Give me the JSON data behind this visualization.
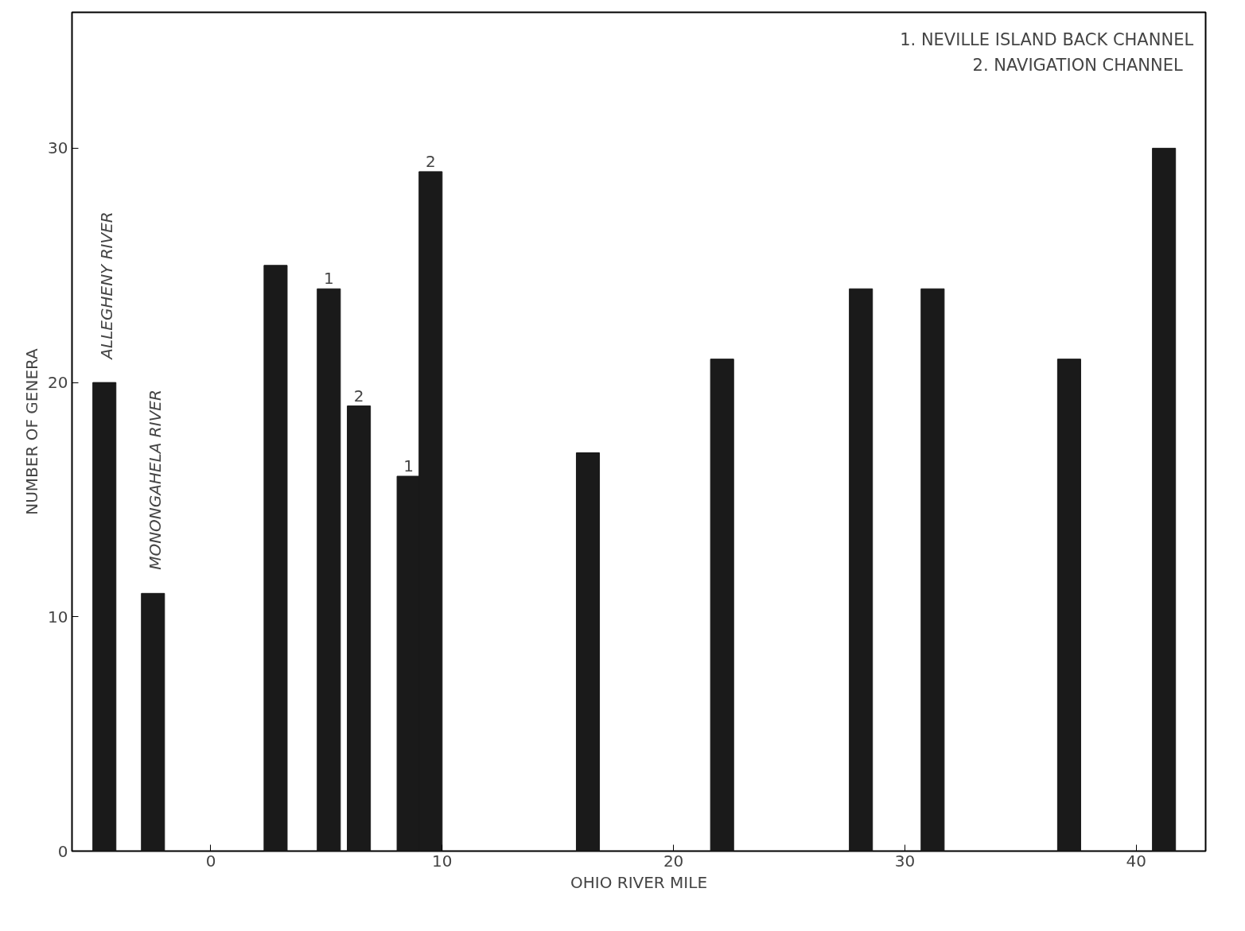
{
  "chart_data": {
    "type": "bar",
    "xlabel": "OHIO RIVER MILE",
    "ylabel": "NUMBER OF GENERA",
    "x": [
      -4.6,
      -2.5,
      2.8,
      5.1,
      6.4,
      8.55,
      9.5,
      16.3,
      22.1,
      28.1,
      31.2,
      37.1,
      41.2
    ],
    "values": [
      20,
      11,
      25,
      24,
      19,
      16,
      29,
      17,
      21,
      24,
      24,
      21,
      30
    ],
    "color": "#1a1a1a",
    "xlim": [
      -6,
      43
    ],
    "xticks": [
      0,
      10,
      20,
      30,
      40
    ],
    "ylim": [
      0,
      35.8
    ],
    "yticks": [
      0,
      10,
      20,
      30
    ],
    "grid": false,
    "annotations": [
      {
        "text": "ALLEGHENY RIVER",
        "x": -4.6,
        "y": 20
      },
      {
        "text": "MONONGAHELA RIVER",
        "x": -2.5,
        "y": 11
      },
      {
        "text": "1",
        "x": 5.1,
        "y": 24
      },
      {
        "text": "2",
        "x": 6.4,
        "y": 19
      },
      {
        "text": "1",
        "x": 8.55,
        "y": 16
      },
      {
        "text": "2",
        "x": 9.5,
        "y": 29
      },
      "1.  NEVILLE ISLAND BACK CHANNEL",
      "2.  NAVIGATION   CHANNEL"
    ]
  }
}
